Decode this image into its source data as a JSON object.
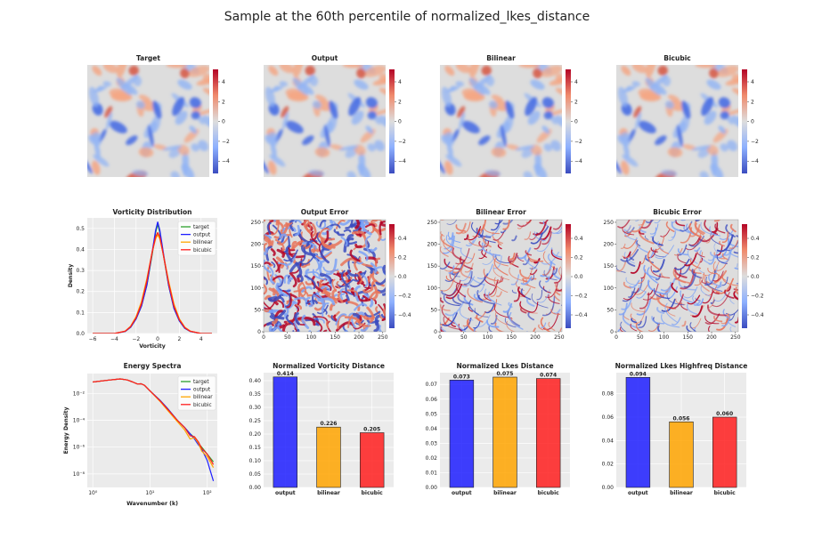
{
  "figure": {
    "title": "Sample at the 60th percentile of normalized_lkes_distance"
  },
  "colors": {
    "target": "#2ca02c",
    "output": "#1f1fff",
    "bilinear": "#ffa500",
    "bicubic": "#ff1f1f",
    "panel_bg": "#ebebeb",
    "grid": "#ffffff",
    "cmap_low": "#3b4cc0",
    "cmap_mid": "#dddddd",
    "cmap_high": "#b40426"
  },
  "fields": [
    {
      "title": "Target",
      "colorbar_ticks": [
        "4",
        "2",
        "0",
        "−2",
        "−4"
      ]
    },
    {
      "title": "Output",
      "colorbar_ticks": [
        "4",
        "2",
        "0",
        "−2",
        "−4"
      ]
    },
    {
      "title": "Bilinear",
      "colorbar_ticks": [
        "4",
        "2",
        "0",
        "−2",
        "−4"
      ]
    },
    {
      "title": "Bicubic",
      "colorbar_ticks": [
        "4",
        "2",
        "0",
        "−2",
        "−4"
      ]
    }
  ],
  "errors": [
    {
      "title": "Output Error",
      "intensity": 1.0
    },
    {
      "title": "Bilinear Error",
      "intensity": 0.45
    },
    {
      "title": "Bicubic Error",
      "intensity": 0.5
    }
  ],
  "error_axes": {
    "x_ticks": [
      "0",
      "50",
      "100",
      "150",
      "200",
      "250"
    ],
    "y_ticks": [
      "250",
      "200",
      "150",
      "100",
      "50",
      "0"
    ],
    "colorbar_ticks": [
      "0.4",
      "0.2",
      "0.0",
      "−0.2",
      "−0.4"
    ]
  },
  "chart_data": [
    {
      "type": "line",
      "title": "Vorticity Distribution",
      "xlabel": "Vorticity",
      "ylabel": "Density",
      "xlim": [
        -6.5,
        5.5
      ],
      "ylim": [
        0,
        0.55
      ],
      "xticks": [
        -6,
        -4,
        -2,
        0,
        2,
        4
      ],
      "yticks": [
        0.0,
        0.1,
        0.2,
        0.3,
        0.4,
        0.5
      ],
      "legend": "top-right",
      "series": [
        {
          "name": "target",
          "x": [
            -6,
            -4,
            -3,
            -2.5,
            -2,
            -1.5,
            -1,
            -0.5,
            -0.2,
            0,
            0.2,
            0.5,
            1,
            1.5,
            2,
            2.5,
            3,
            4,
            5
          ],
          "y": [
            0.0,
            0.0,
            0.01,
            0.03,
            0.07,
            0.13,
            0.23,
            0.38,
            0.48,
            0.52,
            0.48,
            0.38,
            0.23,
            0.12,
            0.06,
            0.025,
            0.01,
            0.0,
            0.0
          ]
        },
        {
          "name": "output",
          "x": [
            -6,
            -4,
            -3,
            -2.5,
            -2,
            -1.5,
            -1,
            -0.5,
            -0.2,
            0,
            0.2,
            0.5,
            1,
            1.5,
            2,
            2.5,
            3,
            4,
            5
          ],
          "y": [
            0.0,
            0.0,
            0.01,
            0.03,
            0.07,
            0.13,
            0.23,
            0.39,
            0.49,
            0.53,
            0.49,
            0.39,
            0.23,
            0.12,
            0.06,
            0.025,
            0.01,
            0.0,
            0.0
          ]
        },
        {
          "name": "bilinear",
          "x": [
            -6,
            -4,
            -3,
            -2.5,
            -2,
            -1.5,
            -1,
            -0.5,
            -0.2,
            0,
            0.2,
            0.5,
            1,
            1.5,
            2,
            2.5,
            3,
            4,
            5
          ],
          "y": [
            0.0,
            0.0,
            0.012,
            0.035,
            0.08,
            0.15,
            0.26,
            0.39,
            0.45,
            0.47,
            0.45,
            0.38,
            0.25,
            0.14,
            0.07,
            0.03,
            0.012,
            0.0,
            0.0
          ]
        },
        {
          "name": "bicubic",
          "x": [
            -6,
            -4,
            -3,
            -2.5,
            -2,
            -1.5,
            -1,
            -0.5,
            -0.2,
            0,
            0.2,
            0.5,
            1,
            1.5,
            2,
            2.5,
            3,
            4,
            5
          ],
          "y": [
            0.0,
            0.0,
            0.011,
            0.033,
            0.075,
            0.14,
            0.25,
            0.39,
            0.46,
            0.48,
            0.46,
            0.38,
            0.24,
            0.13,
            0.065,
            0.028,
            0.011,
            0.0,
            0.0
          ]
        }
      ]
    },
    {
      "type": "line",
      "title": "Energy Spectra",
      "xlabel": "Wavenumber (k)",
      "ylabel": "Energy Density",
      "xscale": "log",
      "yscale": "log",
      "xlim": [
        0.8,
        150
      ],
      "ylim": [
        1e-09,
        0.3
      ],
      "xticks": [
        1,
        10,
        100
      ],
      "xticklabels": [
        "10⁰",
        "10¹",
        "10²"
      ],
      "yticks": [
        1e-08,
        1e-06,
        0.0001,
        0.01
      ],
      "yticklabels": [
        "10⁻⁸",
        "10⁻⁶",
        "10⁻⁴",
        "10⁻²"
      ],
      "legend": "top-right",
      "series": [
        {
          "name": "target",
          "x": [
            1,
            2,
            3,
            4,
            5,
            6,
            7,
            8,
            10,
            15,
            20,
            30,
            40,
            50,
            60,
            70,
            80,
            100,
            128
          ],
          "y": [
            0.07,
            0.1,
            0.12,
            0.1,
            0.07,
            0.05,
            0.052,
            0.04,
            0.015,
            0.003,
            0.0008,
            0.0001,
            3e-05,
            1e-05,
            5e-06,
            2e-06,
            1e-06,
            3e-07,
            8e-08
          ]
        },
        {
          "name": "output",
          "x": [
            1,
            2,
            3,
            4,
            5,
            6,
            7,
            8,
            10,
            15,
            20,
            30,
            40,
            50,
            60,
            70,
            80,
            100,
            128
          ],
          "y": [
            0.07,
            0.1,
            0.12,
            0.1,
            0.07,
            0.05,
            0.052,
            0.04,
            0.015,
            0.003,
            0.0008,
            0.0001,
            3e-05,
            1e-05,
            4e-06,
            1.5e-06,
            7e-07,
            1e-07,
            3e-09
          ]
        },
        {
          "name": "bilinear",
          "x": [
            1,
            2,
            3,
            4,
            5,
            6,
            7,
            8,
            10,
            15,
            20,
            30,
            40,
            50,
            60,
            70,
            80,
            100,
            128
          ],
          "y": [
            0.07,
            0.1,
            0.12,
            0.1,
            0.07,
            0.05,
            0.052,
            0.04,
            0.015,
            0.0025,
            0.0006,
            8e-05,
            2e-05,
            4e-06,
            5e-06,
            2e-06,
            5e-07,
            2e-07,
            3e-08
          ]
        },
        {
          "name": "bicubic",
          "x": [
            1,
            2,
            3,
            4,
            5,
            6,
            7,
            8,
            10,
            15,
            20,
            30,
            40,
            50,
            60,
            70,
            80,
            100,
            128
          ],
          "y": [
            0.07,
            0.1,
            0.12,
            0.1,
            0.07,
            0.05,
            0.052,
            0.04,
            0.015,
            0.0028,
            0.0007,
            0.0001,
            3e-05,
            7e-06,
            6e-06,
            2.5e-06,
            8e-07,
            3e-07,
            5e-08
          ]
        }
      ]
    },
    {
      "type": "bar",
      "title": "Normalized Vorticity Distance",
      "categories": [
        "output",
        "bilinear",
        "bicubic"
      ],
      "values": [
        0.414,
        0.226,
        0.205
      ],
      "value_labels": [
        "0.414",
        "0.226",
        "0.205"
      ],
      "ylim": [
        0,
        0.43
      ],
      "yticks": [
        0.0,
        0.05,
        0.1,
        0.15,
        0.2,
        0.25,
        0.3,
        0.35,
        0.4
      ],
      "yticklabels": [
        "0.00",
        "0.05",
        "0.10",
        "0.15",
        "0.20",
        "0.25",
        "0.30",
        "0.35",
        "0.40"
      ]
    },
    {
      "type": "bar",
      "title": "Normalized Lkes Distance",
      "categories": [
        "output",
        "bilinear",
        "bicubic"
      ],
      "values": [
        0.073,
        0.075,
        0.074
      ],
      "value_labels": [
        "0.073",
        "0.075",
        "0.074"
      ],
      "ylim": [
        0,
        0.078
      ],
      "yticks": [
        0.0,
        0.01,
        0.02,
        0.03,
        0.04,
        0.05,
        0.06,
        0.07
      ],
      "yticklabels": [
        "0.00",
        "0.01",
        "0.02",
        "0.03",
        "0.04",
        "0.05",
        "0.06",
        "0.07"
      ]
    },
    {
      "type": "bar",
      "title": "Normalized Lkes Highfreq Distance",
      "categories": [
        "output",
        "bilinear",
        "bicubic"
      ],
      "values": [
        0.094,
        0.056,
        0.06
      ],
      "value_labels": [
        "0.094",
        "0.056",
        "0.060"
      ],
      "ylim": [
        0,
        0.098
      ],
      "yticks": [
        0.0,
        0.02,
        0.04,
        0.06,
        0.08
      ],
      "yticklabels": [
        "0.00",
        "0.02",
        "0.04",
        "0.06",
        "0.08"
      ]
    }
  ]
}
